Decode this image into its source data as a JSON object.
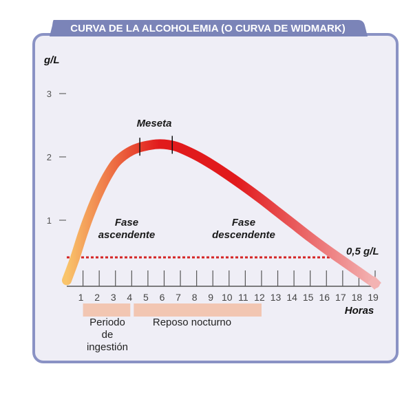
{
  "chart_data": {
    "type": "line",
    "title": "CURVA DE LA ALCOHOLEMIA (O CURVA DE WIDMARK)",
    "ylabel": "g/L",
    "xlabel": "Horas",
    "xlim": [
      0,
      19
    ],
    "ylim": [
      0,
      3.5
    ],
    "xticks": [
      1,
      2,
      3,
      4,
      5,
      6,
      7,
      8,
      9,
      10,
      11,
      12,
      13,
      14,
      15,
      16,
      17,
      18,
      19
    ],
    "yticks": [
      1,
      2,
      3
    ],
    "grid": false,
    "series": [
      {
        "x": [
          0,
          0.5,
          1,
          1.5,
          2,
          2.5,
          3,
          3.5,
          4,
          4.5,
          5,
          5.5,
          6,
          6.5,
          7,
          8,
          9,
          10,
          11,
          12,
          13,
          14,
          15,
          16,
          17,
          18,
          19
        ],
        "y": [
          0.05,
          0.4,
          0.8,
          1.15,
          1.45,
          1.7,
          1.9,
          2.02,
          2.1,
          2.15,
          2.18,
          2.2,
          2.2,
          2.18,
          2.14,
          2.02,
          1.87,
          1.7,
          1.52,
          1.33,
          1.13,
          0.93,
          0.73,
          0.54,
          0.36,
          0.18,
          0.0
        ]
      }
    ],
    "threshold": {
      "value": 0.5,
      "label": "0,5 g/L"
    },
    "annotations": [
      {
        "text": "Meseta",
        "x_start": 4.5,
        "x_end": 6.5
      },
      {
        "text": [
          "Fase",
          "ascendente"
        ]
      },
      {
        "text": [
          "Fase",
          "descendente"
        ]
      }
    ],
    "periods": [
      {
        "label": [
          "Periodo",
          "de",
          "ingestión"
        ],
        "x_start": 1,
        "x_end": 4
      },
      {
        "label": [
          "Reposo nocturno"
        ],
        "x_start": 4,
        "x_end": 12
      }
    ],
    "colors": {
      "title_bar": "#7b84b8",
      "panel_fill": "#efeef6",
      "panel_border": "#8a92c4",
      "curve_start": "#f9c46b",
      "curve_mid": "#e11a1c",
      "curve_end": "#f3b3b3",
      "threshold": "#d42424",
      "period_bar": "#f2c6b2",
      "axis": "#555555"
    }
  }
}
